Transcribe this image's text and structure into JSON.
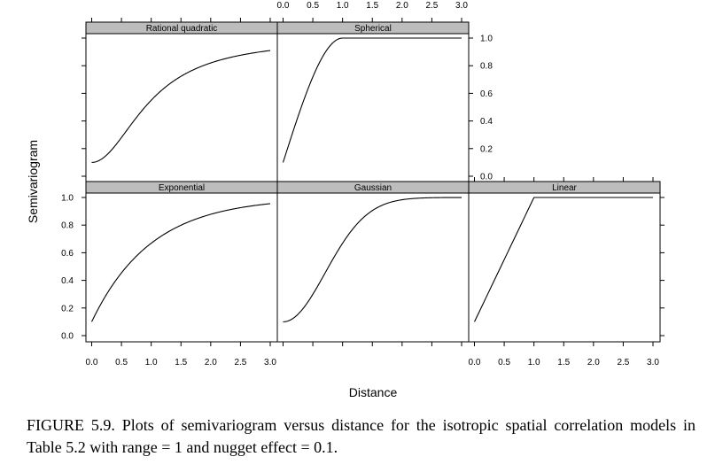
{
  "chart_data": {
    "type": "line",
    "layout": "trellis 3x2",
    "xlabel": "Distance",
    "ylabel": "Semivariogram",
    "xlim": [
      0.0,
      3.0
    ],
    "ylim": [
      0.0,
      1.0
    ],
    "x_ticks": [
      "0.0",
      "0.5",
      "1.0",
      "1.5",
      "2.0",
      "2.5",
      "3.0"
    ],
    "y_ticks": [
      "0.0",
      "0.2",
      "0.4",
      "0.6",
      "0.8",
      "1.0"
    ],
    "range": 1,
    "nugget": 0.1,
    "panels": [
      {
        "name": "Rational quadratic",
        "model": "rational_quadratic"
      },
      {
        "name": "Spherical",
        "model": "spherical"
      },
      {
        "name": "Exponential",
        "model": "exponential"
      },
      {
        "name": "Gaussian",
        "model": "gaussian"
      },
      {
        "name": "Linear",
        "model": "linear"
      }
    ]
  },
  "caption": "FIGURE 5.9. Plots of semivariogram versus distance for the isotropic spatial correlation models in Table 5.2 with range = 1 and nugget effect = 0.1."
}
